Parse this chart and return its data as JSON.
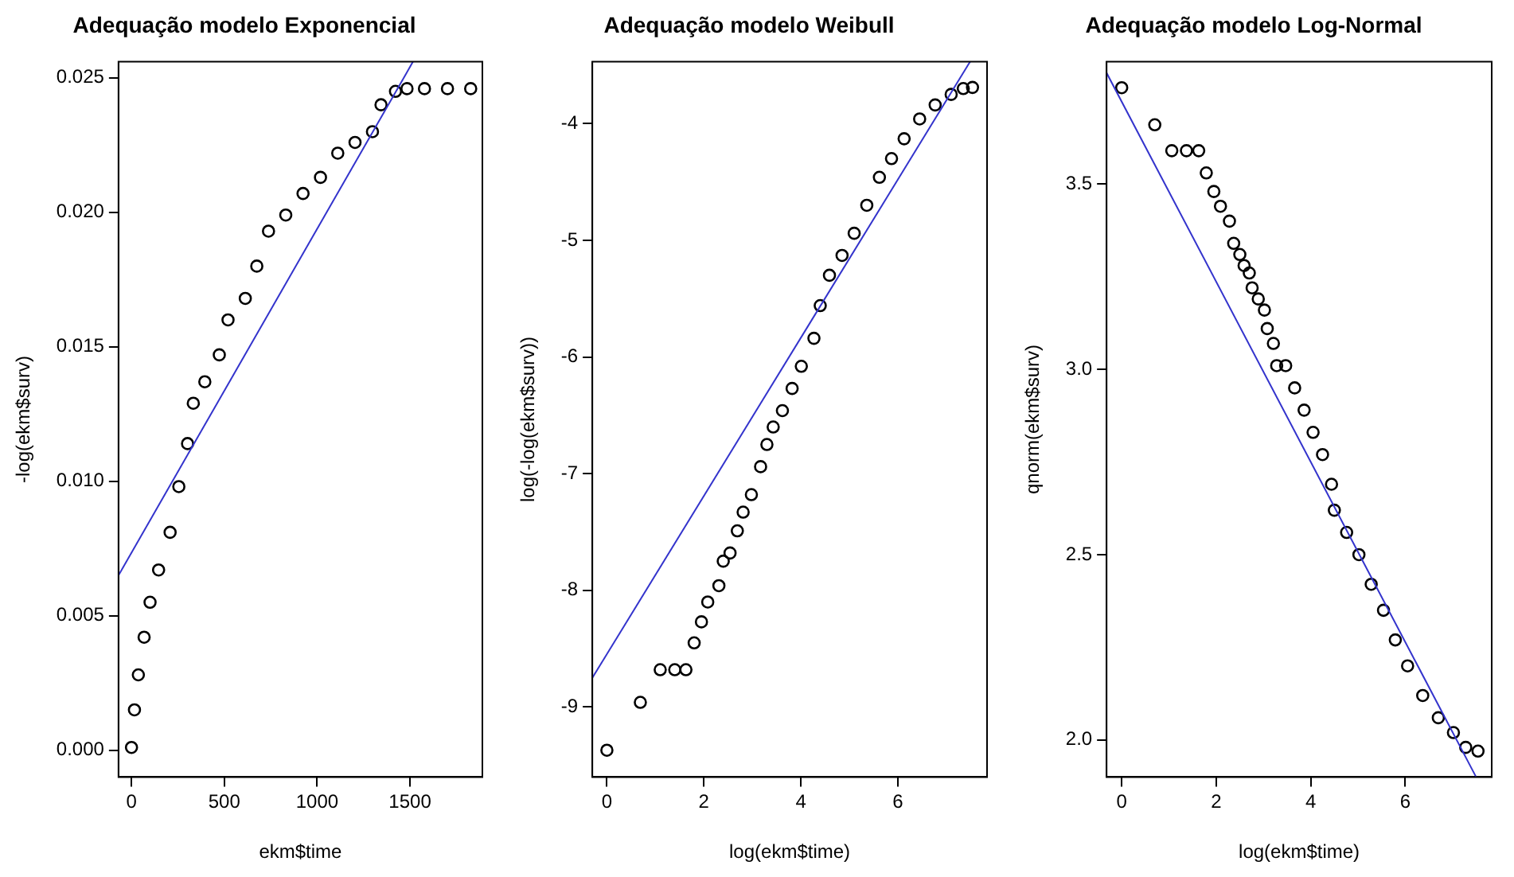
{
  "chart_data": [
    {
      "type": "scatter",
      "title": "Adequação modelo Exponencial",
      "xlabel": "ekm$time",
      "ylabel": "-log(ekm$surv)",
      "xlim": [
        -70,
        1890
      ],
      "ylim": [
        -0.001,
        0.0256
      ],
      "xticks": [
        0,
        500,
        1000,
        1500
      ],
      "yticks": [
        {
          "value": 0,
          "label": "0.000"
        },
        {
          "value": 0.005,
          "label": "0.005"
        },
        {
          "value": 0.01,
          "label": "0.010"
        },
        {
          "value": 0.015,
          "label": "0.015"
        },
        {
          "value": 0.02,
          "label": "0.020"
        },
        {
          "value": 0.025,
          "label": "0.025"
        }
      ],
      "grid": false,
      "legend": false,
      "series": [
        {
          "type": "scatter",
          "marker": "circle",
          "color": "#000000",
          "x": [
            0,
            16,
            37,
            68,
            100,
            146,
            208,
            255,
            302,
            333,
            395,
            473,
            520,
            613,
            675,
            738,
            831,
            924,
            1018,
            1111,
            1204,
            1298,
            1344,
            1422,
            1484,
            1578,
            1702,
            1827
          ],
          "values": [
            0.0001,
            0.0015,
            0.0028,
            0.0042,
            0.0055,
            0.0067,
            0.0081,
            0.0098,
            0.0114,
            0.0129,
            0.0137,
            0.0147,
            0.016,
            0.0168,
            0.018,
            0.0193,
            0.0199,
            0.0207,
            0.0213,
            0.0222,
            0.0226,
            0.023,
            0.024,
            0.0245,
            0.0246,
            0.0246,
            0.0246,
            0.0246
          ]
        },
        {
          "type": "line",
          "marker": "none",
          "color": "#3333cc",
          "x": [
            -70,
            1516
          ],
          "values": [
            0.0065,
            0.0256
          ]
        }
      ]
    },
    {
      "type": "scatter",
      "title": "Adequação modelo Weibull",
      "xlabel": "log(ekm$time)",
      "ylabel": "log(-log(ekm$surv))",
      "xlim": [
        -0.3,
        7.84
      ],
      "ylim": [
        -9.6,
        -3.47
      ],
      "xticks": [
        0,
        2,
        4,
        6
      ],
      "yticks": [
        -9,
        -8,
        -7,
        -6,
        -5,
        -4
      ],
      "grid": false,
      "legend": false,
      "series": [
        {
          "type": "scatter",
          "marker": "circle",
          "color": "#000000",
          "x": [
            0,
            0.69,
            1.1,
            1.4,
            1.63,
            1.8,
            1.95,
            2.08,
            2.31,
            2.4,
            2.54,
            2.69,
            2.81,
            2.98,
            3.17,
            3.3,
            3.43,
            3.62,
            3.82,
            4.01,
            4.27,
            4.4,
            4.59,
            4.85,
            5.1,
            5.36,
            5.62,
            5.87,
            6.13,
            6.45,
            6.77,
            7.1,
            7.35,
            7.54
          ],
          "values": [
            -9.37,
            -8.96,
            -8.68,
            -8.68,
            -8.68,
            -8.45,
            -8.27,
            -8.1,
            -7.96,
            -7.75,
            -7.68,
            -7.49,
            -7.33,
            -7.18,
            -6.94,
            -6.75,
            -6.6,
            -6.46,
            -6.27,
            -6.08,
            -5.84,
            -5.56,
            -5.3,
            -5.13,
            -4.94,
            -4.7,
            -4.46,
            -4.3,
            -4.13,
            -3.96,
            -3.84,
            -3.75,
            -3.7,
            -3.69
          ]
        },
        {
          "type": "line",
          "marker": "none",
          "color": "#3333cc",
          "x": [
            -0.3,
            7.49
          ],
          "values": [
            -8.75,
            -3.47
          ]
        }
      ]
    },
    {
      "type": "scatter",
      "title": "Adequação modelo Log-Normal",
      "xlabel": "log(ekm$time)",
      "ylabel": "qnorm(ekm$surv)",
      "xlim": [
        -0.32,
        7.83
      ],
      "ylim": [
        1.9,
        3.83
      ],
      "xticks": [
        0,
        2,
        4,
        6
      ],
      "yticks": [
        {
          "value": 2,
          "label": "2.0"
        },
        2.5,
        {
          "value": 3,
          "label": "3.0"
        },
        3.5
      ],
      "grid": false,
      "legend": false,
      "series": [
        {
          "type": "scatter",
          "marker": "circle",
          "color": "#000000",
          "x": [
            0,
            0.7,
            1.06,
            1.37,
            1.63,
            1.79,
            1.95,
            2.09,
            2.28,
            2.37,
            2.5,
            2.59,
            2.7,
            2.76,
            2.89,
            3.02,
            3.08,
            3.21,
            3.28,
            3.47,
            3.66,
            3.86,
            4.05,
            4.25,
            4.44,
            4.5,
            4.76,
            5.02,
            5.28,
            5.54,
            5.79,
            6.05,
            6.37,
            6.7,
            7.02,
            7.28,
            7.54
          ],
          "values": [
            3.76,
            3.66,
            3.59,
            3.59,
            3.59,
            3.53,
            3.48,
            3.44,
            3.4,
            3.34,
            3.31,
            3.28,
            3.26,
            3.22,
            3.19,
            3.16,
            3.11,
            3.07,
            3.01,
            3.01,
            2.95,
            2.89,
            2.83,
            2.77,
            2.69,
            2.62,
            2.56,
            2.5,
            2.42,
            2.35,
            2.27,
            2.2,
            2.12,
            2.06,
            2.02,
            1.98,
            1.97
          ]
        },
        {
          "type": "line",
          "marker": "none",
          "color": "#3333cc",
          "x": [
            -0.32,
            7.5
          ],
          "values": [
            3.8,
            1.9
          ]
        }
      ]
    }
  ]
}
